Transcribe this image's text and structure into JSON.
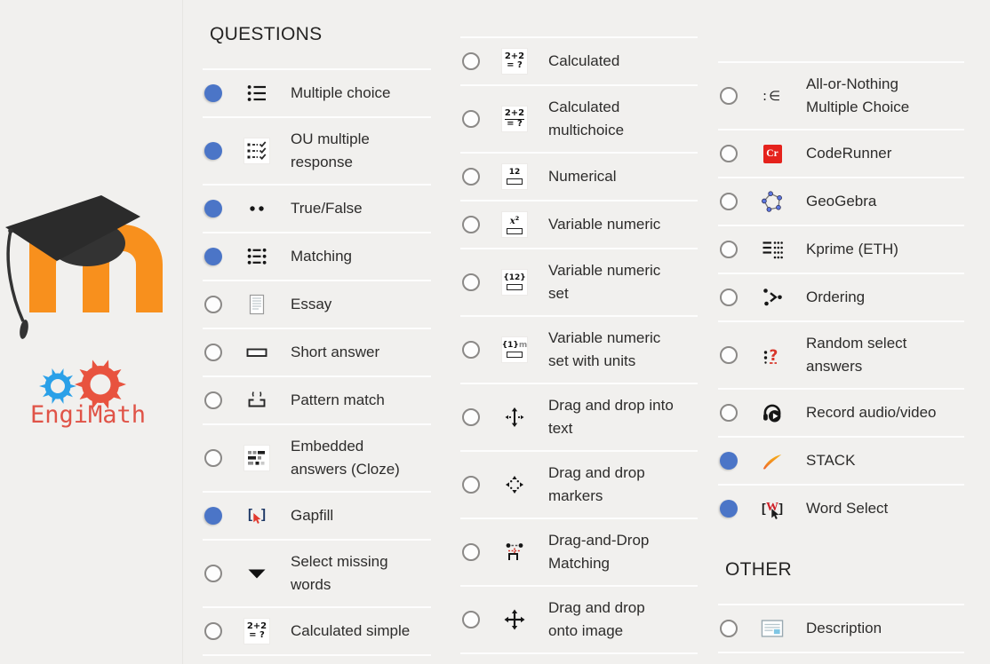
{
  "page": {
    "background": "#f1f0ee"
  },
  "branding": {
    "engimath_label": "EngiMath"
  },
  "colors": {
    "selected_radio": "#4b75c7",
    "radio_border": "#8b8987",
    "moodle_orange": "#f8901d",
    "engimath_red": "#e8533f",
    "engimath_blue": "#2aa0e8",
    "coderunner_red": "#e5221c",
    "row_divider": "#fdfdfd"
  },
  "columns": [
    {
      "blocks": [
        {
          "header": "QUESTIONS",
          "items": [
            {
              "label": "Multiple choice",
              "icon": "multiple-choice-icon",
              "selected": true
            },
            {
              "label": "OU multiple response",
              "icon": "ou-multiple-response-icon",
              "selected": true
            },
            {
              "label": "True/False",
              "icon": "true-false-icon",
              "selected": true
            },
            {
              "label": "Matching",
              "icon": "matching-icon",
              "selected": true
            },
            {
              "label": "Essay",
              "icon": "essay-icon",
              "selected": false
            },
            {
              "label": "Short answer",
              "icon": "short-answer-icon",
              "selected": false
            },
            {
              "label": "Pattern match",
              "icon": "pattern-match-icon",
              "selected": false
            },
            {
              "label": "Embedded answers (Cloze)",
              "icon": "cloze-icon",
              "selected": false
            },
            {
              "label": "Gapfill",
              "icon": "gapfill-icon",
              "selected": true
            },
            {
              "label": "Select missing words",
              "icon": "select-missing-words-icon",
              "selected": false
            },
            {
              "label": "Calculated simple",
              "icon": "calculated-simple-icon",
              "selected": false
            }
          ]
        }
      ]
    },
    {
      "blocks": [
        {
          "header": null,
          "items": [
            {
              "label": "Calculated",
              "icon": "calculated-icon",
              "selected": false
            },
            {
              "label": "Calculated multichoice",
              "icon": "calculated-multichoice-icon",
              "selected": false
            },
            {
              "label": "Numerical",
              "icon": "numerical-icon",
              "selected": false
            },
            {
              "label": "Variable numeric",
              "icon": "variable-numeric-icon",
              "selected": false
            },
            {
              "label": "Variable numeric set",
              "icon": "variable-numeric-set-icon",
              "selected": false
            },
            {
              "label": "Variable numeric set with units",
              "icon": "variable-numeric-set-units-icon",
              "selected": false
            },
            {
              "label": "Drag and drop into text",
              "icon": "drag-drop-into-text-icon",
              "selected": false
            },
            {
              "label": "Drag and drop markers",
              "icon": "drag-drop-markers-icon",
              "selected": false
            },
            {
              "label": "Drag-and-Drop Matching",
              "icon": "drag-drop-matching-icon",
              "selected": false
            },
            {
              "label": "Drag and drop onto image",
              "icon": "drag-drop-onto-image-icon",
              "selected": false
            }
          ]
        }
      ]
    },
    {
      "blocks": [
        {
          "header": null,
          "items": [
            {
              "label": "All-or-Nothing Multiple Choice",
              "icon": "all-or-nothing-icon",
              "selected": false
            },
            {
              "label": "CodeRunner",
              "icon": "coderunner-icon",
              "selected": false
            },
            {
              "label": "GeoGebra",
              "icon": "geogebra-icon",
              "selected": false
            },
            {
              "label": "Kprime (ETH)",
              "icon": "kprime-icon",
              "selected": false
            },
            {
              "label": "Ordering",
              "icon": "ordering-icon",
              "selected": false
            },
            {
              "label": "Random select answers",
              "icon": "random-select-icon",
              "selected": false
            },
            {
              "label": "Record audio/video",
              "icon": "record-audio-video-icon",
              "selected": false
            },
            {
              "label": "STACK",
              "icon": "stack-icon",
              "selected": true
            },
            {
              "label": "Word Select",
              "icon": "word-select-icon",
              "selected": true
            }
          ]
        },
        {
          "header": "OTHER",
          "items": [
            {
              "label": "Description",
              "icon": "description-icon",
              "selected": false
            }
          ]
        }
      ]
    }
  ]
}
